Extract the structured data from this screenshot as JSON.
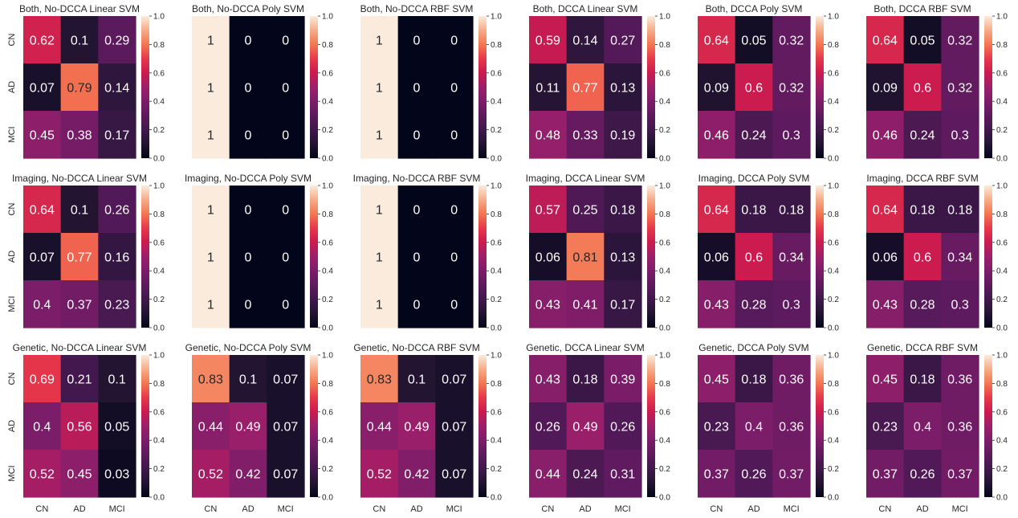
{
  "row_labels": [
    "CN",
    "AD",
    "MCI"
  ],
  "col_labels": [
    "CN",
    "AD",
    "MCI"
  ],
  "colorbar_ticks": [
    "0.0",
    "0.2",
    "0.4",
    "0.6",
    "0.8",
    "1.0"
  ],
  "colorscale": {
    "name": "rocket",
    "range": [
      0,
      1
    ]
  },
  "chart_data": [
    {
      "type": "heatmap",
      "title": "Both, No-DCCA Linear SVM",
      "values": [
        [
          0.62,
          0.1,
          0.29
        ],
        [
          0.07,
          0.79,
          0.14
        ],
        [
          0.45,
          0.38,
          0.17
        ]
      ]
    },
    {
      "type": "heatmap",
      "title": "Both, No-DCCA Poly SVM",
      "values": [
        [
          1,
          0,
          0
        ],
        [
          1,
          0,
          0
        ],
        [
          1,
          0,
          0
        ]
      ]
    },
    {
      "type": "heatmap",
      "title": "Both, No-DCCA RBF SVM",
      "values": [
        [
          1,
          0,
          0
        ],
        [
          1,
          0,
          0
        ],
        [
          1,
          0,
          0
        ]
      ]
    },
    {
      "type": "heatmap",
      "title": "Both, DCCA Linear SVM",
      "values": [
        [
          0.59,
          0.14,
          0.27
        ],
        [
          0.11,
          0.77,
          0.13
        ],
        [
          0.48,
          0.33,
          0.19
        ]
      ]
    },
    {
      "type": "heatmap",
      "title": "Both, DCCA Poly SVM",
      "values": [
        [
          0.64,
          0.05,
          0.32
        ],
        [
          0.09,
          0.6,
          0.32
        ],
        [
          0.46,
          0.24,
          0.3
        ]
      ]
    },
    {
      "type": "heatmap",
      "title": "Both, DCCA RBF SVM",
      "values": [
        [
          0.64,
          0.05,
          0.32
        ],
        [
          0.09,
          0.6,
          0.32
        ],
        [
          0.46,
          0.24,
          0.3
        ]
      ]
    },
    {
      "type": "heatmap",
      "title": "Imaging, No-DCCA Linear SVM",
      "values": [
        [
          0.64,
          0.1,
          0.26
        ],
        [
          0.07,
          0.77,
          0.16
        ],
        [
          0.4,
          0.37,
          0.23
        ]
      ]
    },
    {
      "type": "heatmap",
      "title": "Imaging, No-DCCA Poly SVM",
      "values": [
        [
          1,
          0,
          0
        ],
        [
          1,
          0,
          0
        ],
        [
          1,
          0,
          0
        ]
      ]
    },
    {
      "type": "heatmap",
      "title": "Imaging, No-DCCA RBF SVM",
      "values": [
        [
          1,
          0,
          0
        ],
        [
          1,
          0,
          0
        ],
        [
          1,
          0,
          0
        ]
      ]
    },
    {
      "type": "heatmap",
      "title": "Imaging, DCCA Linear SVM",
      "values": [
        [
          0.57,
          0.25,
          0.18
        ],
        [
          0.06,
          0.81,
          0.13
        ],
        [
          0.43,
          0.41,
          0.17
        ]
      ]
    },
    {
      "type": "heatmap",
      "title": "Imaging, DCCA Poly SVM",
      "values": [
        [
          0.64,
          0.18,
          0.18
        ],
        [
          0.06,
          0.6,
          0.34
        ],
        [
          0.43,
          0.28,
          0.3
        ]
      ]
    },
    {
      "type": "heatmap",
      "title": "Imaging, DCCA RBF SVM",
      "values": [
        [
          0.64,
          0.18,
          0.18
        ],
        [
          0.06,
          0.6,
          0.34
        ],
        [
          0.43,
          0.28,
          0.3
        ]
      ]
    },
    {
      "type": "heatmap",
      "title": "Genetic, No-DCCA Linear SVM",
      "values": [
        [
          0.69,
          0.21,
          0.1
        ],
        [
          0.4,
          0.56,
          0.05
        ],
        [
          0.52,
          0.45,
          0.03
        ]
      ]
    },
    {
      "type": "heatmap",
      "title": "Genetic, No-DCCA Poly SVM",
      "values": [
        [
          0.83,
          0.1,
          0.07
        ],
        [
          0.44,
          0.49,
          0.07
        ],
        [
          0.52,
          0.42,
          0.07
        ]
      ]
    },
    {
      "type": "heatmap",
      "title": "Genetic, No-DCCA RBF SVM",
      "values": [
        [
          0.83,
          0.1,
          0.07
        ],
        [
          0.44,
          0.49,
          0.07
        ],
        [
          0.52,
          0.42,
          0.07
        ]
      ]
    },
    {
      "type": "heatmap",
      "title": "Genetic, DCCA Linear SVM",
      "values": [
        [
          0.43,
          0.18,
          0.39
        ],
        [
          0.26,
          0.49,
          0.26
        ],
        [
          0.44,
          0.24,
          0.31
        ]
      ]
    },
    {
      "type": "heatmap",
      "title": "Genetic, DCCA Poly SVM",
      "values": [
        [
          0.45,
          0.18,
          0.36
        ],
        [
          0.23,
          0.4,
          0.36
        ],
        [
          0.37,
          0.26,
          0.37
        ]
      ]
    },
    {
      "type": "heatmap",
      "title": "Genetic, DCCA RBF SVM",
      "values": [
        [
          0.45,
          0.18,
          0.36
        ],
        [
          0.23,
          0.4,
          0.36
        ],
        [
          0.37,
          0.26,
          0.37
        ]
      ]
    }
  ]
}
